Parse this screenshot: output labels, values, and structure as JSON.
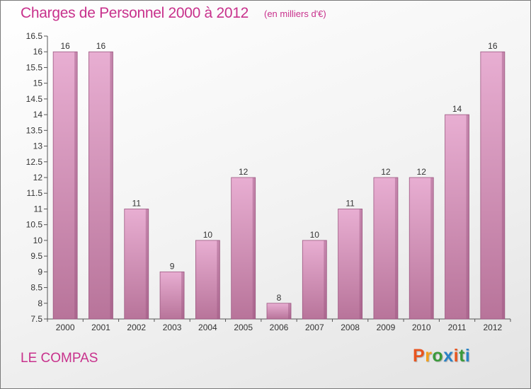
{
  "header": {
    "title": "Charges de Personnel 2000 à 2012",
    "unit": "(en milliers d'€)"
  },
  "footer": {
    "commune": "LE COMPAS",
    "logo_text": "Proxiti",
    "logo_colors": [
      "#e8541e",
      "#f2a01b",
      "#3a9a3a",
      "#2a82c6",
      "#e8541e",
      "#3a9a3a",
      "#2a82c6"
    ]
  },
  "colors": {
    "bar_fill_top": "#e8aed2",
    "bar_fill_bottom": "#b8749a",
    "bar_edge": "#9c5780",
    "accent": "#c8318c"
  },
  "chart_data": {
    "type": "bar",
    "title": "Charges de Personnel 2000 à 2012",
    "subtitle": "(en milliers d'€)",
    "categories": [
      "2000",
      "2001",
      "2002",
      "2003",
      "2004",
      "2005",
      "2006",
      "2007",
      "2008",
      "2009",
      "2010",
      "2011",
      "2012"
    ],
    "values": [
      16,
      16,
      11,
      9,
      10,
      12,
      8,
      10,
      11,
      12,
      12,
      14,
      16
    ],
    "data_labels": [
      "16",
      "16",
      "11",
      "9",
      "10",
      "12",
      "8",
      "10",
      "11",
      "12",
      "12",
      "14",
      "16"
    ],
    "ylim": [
      7.5,
      16.5
    ],
    "yticks": [
      "7.5",
      "8",
      "8.5",
      "9",
      "9.5",
      "10",
      "10.5",
      "11",
      "11.5",
      "12",
      "12.5",
      "13",
      "13.5",
      "14",
      "14.5",
      "15",
      "15.5",
      "16",
      "16.5"
    ],
    "grid": false,
    "legend": "none"
  }
}
